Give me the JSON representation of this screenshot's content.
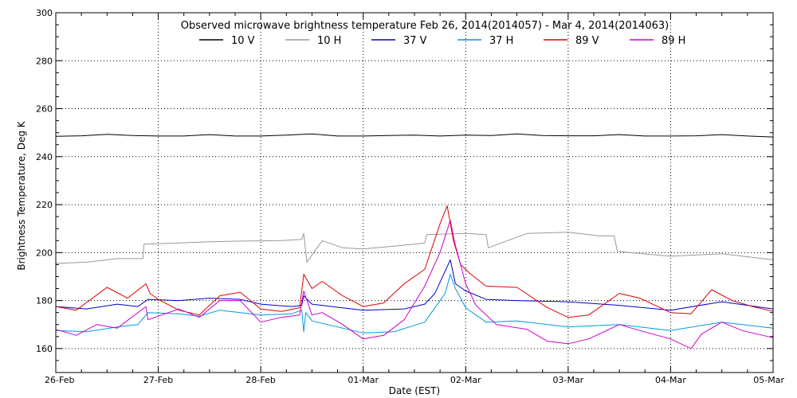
{
  "chart_data": {
    "type": "line",
    "title": "Observed microwave brightness temperature Feb 26, 2014(2014057) - Mar  4, 2014(2014063)",
    "xlabel": "Date (EST)",
    "ylabel": "Brightness Temperature, Deg K",
    "ylim": [
      150,
      300
    ],
    "yticks": [
      160,
      180,
      200,
      220,
      240,
      260,
      280,
      300
    ],
    "xlim": [
      "2014-02-26",
      "2014-03-05"
    ],
    "xticks": [
      "26-Feb",
      "27-Feb",
      "28-Feb",
      "01-Mar",
      "02-Mar",
      "03-Mar",
      "04-Mar",
      "05-Mar"
    ],
    "grid": true,
    "legend_position": "top",
    "series": [
      {
        "name": "10 V",
        "color": "#000000",
        "x": [
          0,
          0.25,
          0.5,
          0.75,
          1.0,
          1.25,
          1.5,
          1.75,
          2.0,
          2.25,
          2.5,
          2.75,
          3.0,
          3.25,
          3.5,
          3.75,
          4.0,
          4.25,
          4.5,
          4.75,
          5.0,
          5.25,
          5.5,
          5.75,
          6.0,
          6.25,
          6.5,
          6.75,
          7.0
        ],
        "y": [
          248.5,
          248.7,
          249.3,
          248.8,
          248.6,
          248.6,
          249.2,
          248.6,
          248.6,
          249.0,
          249.5,
          248.6,
          248.6,
          248.8,
          249.0,
          248.6,
          249.0,
          248.8,
          249.5,
          248.8,
          248.7,
          248.7,
          249.2,
          248.6,
          248.6,
          248.7,
          249.2,
          248.6,
          248.2
        ]
      },
      {
        "name": "10 H",
        "color": "#999999",
        "x": [
          0,
          0.3,
          0.6,
          0.85,
          0.86,
          1.2,
          1.5,
          1.8,
          2.2,
          2.4,
          2.42,
          2.45,
          2.6,
          2.8,
          3.0,
          3.5,
          3.6,
          3.62,
          4.0,
          4.2,
          4.22,
          4.6,
          5.0,
          5.3,
          5.45,
          5.48,
          5.6,
          6.0,
          6.5,
          7.0
        ],
        "y": [
          195.5,
          196,
          197.5,
          197.5,
          203.5,
          204,
          204.5,
          204.8,
          205,
          205.5,
          208,
          196,
          205,
          202,
          201.5,
          203.5,
          204,
          207.5,
          208,
          207.5,
          202,
          208,
          208.5,
          207,
          207,
          200.5,
          200,
          198.5,
          199.5,
          197
        ]
      },
      {
        "name": "37 V",
        "color": "#0000cc",
        "x": [
          0,
          0.3,
          0.6,
          0.8,
          0.9,
          1.2,
          1.5,
          1.8,
          2.0,
          2.3,
          2.4,
          2.42,
          2.5,
          3.0,
          3.4,
          3.6,
          3.7,
          3.85,
          3.9,
          4.0,
          4.2,
          4.5,
          5.0,
          5.5,
          6.0,
          6.5,
          7.0
        ],
        "y": [
          177.5,
          176.5,
          178.5,
          177.5,
          180.5,
          180,
          181,
          180.5,
          178.5,
          177.5,
          178,
          182,
          178.5,
          176,
          176.5,
          178.5,
          183,
          197,
          187,
          184,
          180.5,
          180,
          179.5,
          178,
          176,
          179.5,
          176.5
        ]
      },
      {
        "name": "37 H",
        "color": "#0099dd",
        "x": [
          0,
          0.3,
          0.6,
          0.8,
          0.9,
          1.2,
          1.4,
          1.6,
          1.8,
          2.0,
          2.3,
          2.4,
          2.42,
          2.44,
          2.5,
          3.0,
          3.3,
          3.6,
          3.8,
          3.85,
          3.9,
          4.0,
          4.2,
          4.5,
          5.0,
          5.5,
          6.0,
          6.5,
          7.0
        ],
        "y": [
          167.5,
          167,
          169,
          170,
          175,
          174.5,
          173.5,
          176,
          175,
          174,
          174.5,
          176,
          167,
          175,
          171.5,
          166.5,
          167,
          171,
          183,
          191,
          185,
          177,
          171,
          171.5,
          169,
          170,
          167.5,
          171,
          168.5
        ]
      },
      {
        "name": "89 V",
        "color": "#dd0000",
        "x": [
          0,
          0.2,
          0.5,
          0.7,
          0.88,
          0.92,
          1.0,
          1.2,
          1.4,
          1.6,
          1.8,
          2.0,
          2.2,
          2.38,
          2.42,
          2.5,
          2.6,
          2.8,
          3.0,
          3.2,
          3.4,
          3.6,
          3.75,
          3.82,
          3.88,
          3.95,
          4.05,
          4.2,
          4.5,
          4.8,
          5.0,
          5.2,
          5.5,
          5.7,
          6.0,
          6.2,
          6.4,
          6.6,
          6.8,
          7.0
        ],
        "y": [
          177.5,
          176,
          185.5,
          181,
          187,
          183,
          180.5,
          176,
          174,
          182,
          183.5,
          176.5,
          175.5,
          177,
          191,
          185,
          188,
          182,
          177.5,
          179,
          187,
          193,
          212,
          219.5,
          205,
          195,
          191,
          186,
          185.5,
          177,
          173,
          174,
          183,
          181,
          175,
          174.5,
          184.5,
          180,
          177.5,
          175.5
        ]
      },
      {
        "name": "89 H",
        "color": "#cc00cc",
        "x": [
          0,
          0.2,
          0.4,
          0.6,
          0.88,
          0.9,
          1.0,
          1.2,
          1.4,
          1.6,
          1.8,
          2.0,
          2.2,
          2.38,
          2.42,
          2.5,
          2.6,
          2.8,
          3.0,
          3.2,
          3.4,
          3.6,
          3.75,
          3.85,
          3.9,
          4.0,
          4.1,
          4.3,
          4.6,
          4.8,
          5.0,
          5.2,
          5.5,
          5.7,
          6.0,
          6.2,
          6.3,
          6.5,
          6.7,
          7.0
        ],
        "y": [
          168,
          165.5,
          170,
          168.5,
          177.5,
          172,
          173.5,
          176.5,
          173,
          180,
          180,
          171,
          173,
          174,
          184,
          174,
          175,
          170,
          164,
          165.5,
          172,
          186,
          200,
          213.5,
          203,
          187,
          178,
          170,
          168,
          163,
          162,
          164,
          170,
          167.5,
          164,
          160,
          166,
          171,
          167.5,
          164.5
        ]
      }
    ]
  }
}
